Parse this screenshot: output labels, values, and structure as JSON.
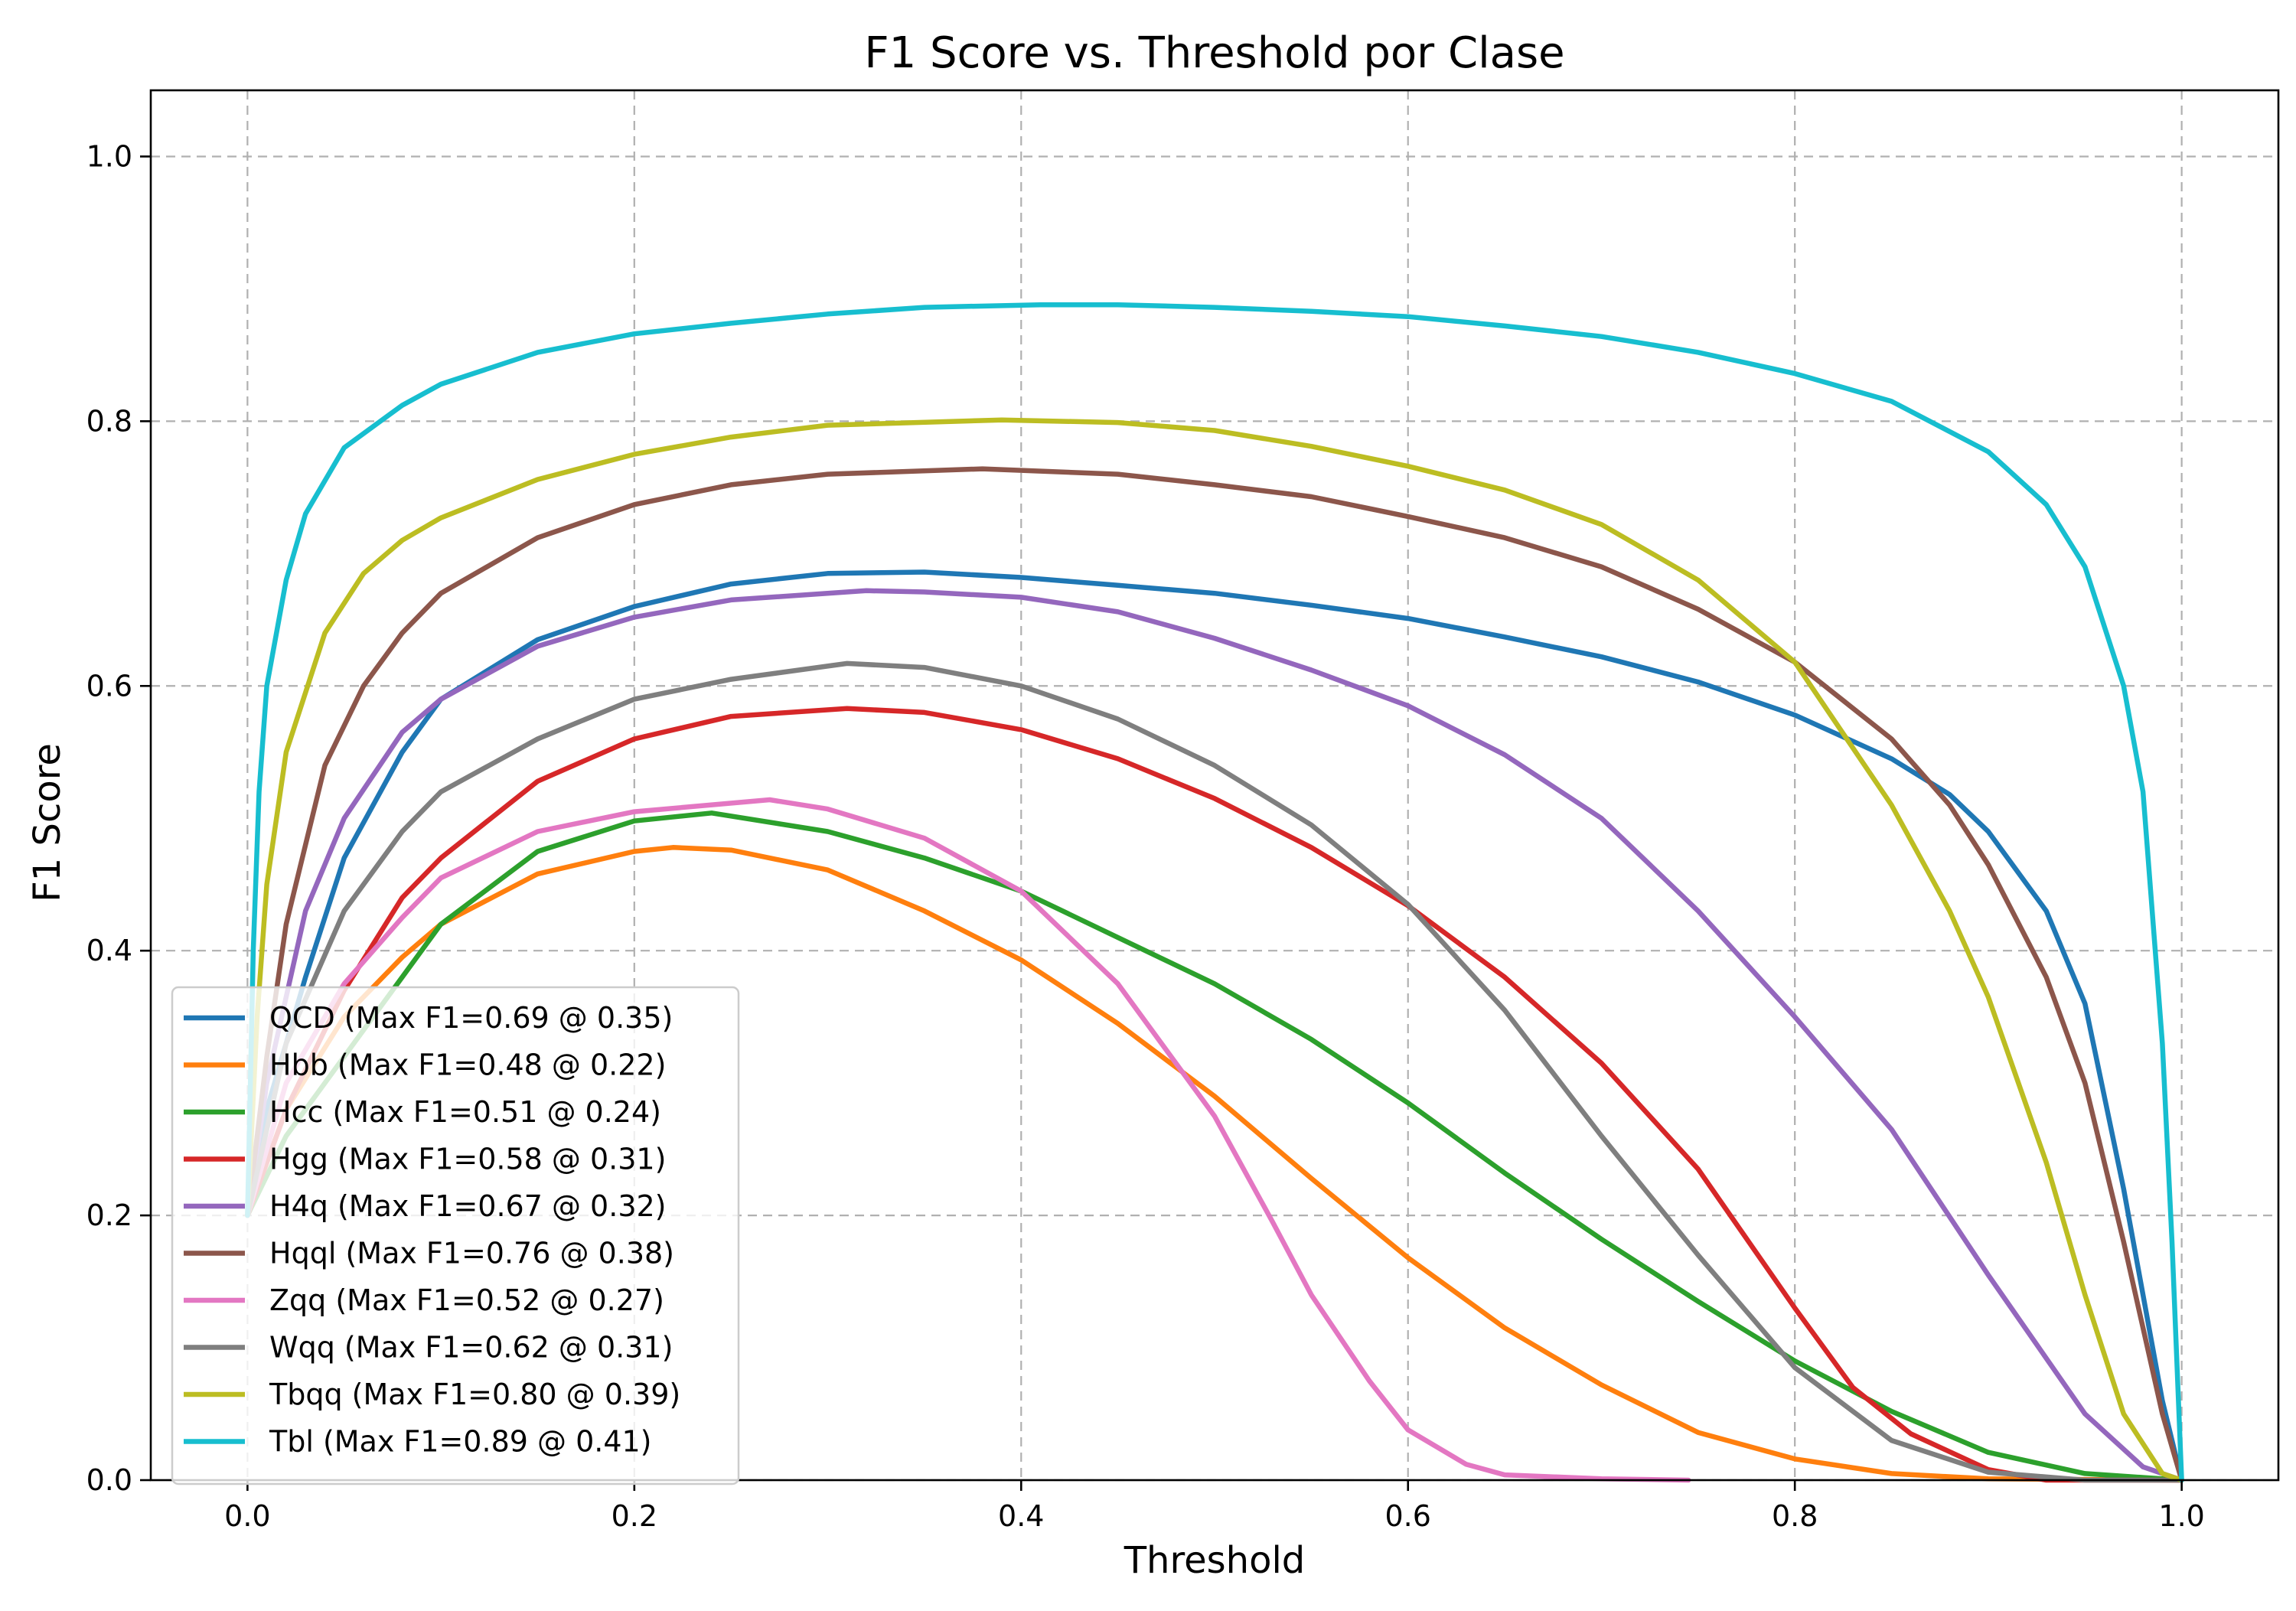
{
  "chart_data": {
    "type": "line",
    "title": "F1 Score vs. Threshold por Clase",
    "xlabel": "Threshold",
    "ylabel": "F1 Score",
    "xlim": [
      -0.05,
      1.05
    ],
    "ylim": [
      0.0,
      1.05
    ],
    "xticks": [
      0.0,
      0.2,
      0.4,
      0.6,
      0.8,
      1.0
    ],
    "xtick_labels": [
      "0.0",
      "0.2",
      "0.4",
      "0.6",
      "0.8",
      "1.0"
    ],
    "yticks": [
      0.0,
      0.2,
      0.4,
      0.6,
      0.8,
      1.0
    ],
    "ytick_labels": [
      "0.0",
      "0.2",
      "0.4",
      "0.6",
      "0.8",
      "1.0"
    ],
    "grid": true,
    "legend_position": "lower-left",
    "series": [
      {
        "name": "QCD (Max F1=0.69 @ 0.35)",
        "color": "#1f77b4",
        "points": [
          [
            0.0,
            0.2
          ],
          [
            0.01,
            0.28
          ],
          [
            0.03,
            0.38
          ],
          [
            0.05,
            0.47
          ],
          [
            0.08,
            0.55
          ],
          [
            0.1,
            0.59
          ],
          [
            0.15,
            0.635
          ],
          [
            0.2,
            0.66
          ],
          [
            0.25,
            0.677
          ],
          [
            0.3,
            0.685
          ],
          [
            0.35,
            0.686
          ],
          [
            0.4,
            0.682
          ],
          [
            0.45,
            0.676
          ],
          [
            0.5,
            0.67
          ],
          [
            0.55,
            0.661
          ],
          [
            0.6,
            0.651
          ],
          [
            0.65,
            0.637
          ],
          [
            0.7,
            0.622
          ],
          [
            0.75,
            0.603
          ],
          [
            0.8,
            0.578
          ],
          [
            0.85,
            0.545
          ],
          [
            0.88,
            0.518
          ],
          [
            0.9,
            0.49
          ],
          [
            0.93,
            0.43
          ],
          [
            0.95,
            0.36
          ],
          [
            0.97,
            0.22
          ],
          [
            0.99,
            0.06
          ],
          [
            1.0,
            0.0
          ]
        ]
      },
      {
        "name": "Hbb (Max F1=0.48 @ 0.22)",
        "color": "#ff7f0e",
        "points": [
          [
            0.0,
            0.2
          ],
          [
            0.02,
            0.28
          ],
          [
            0.05,
            0.35
          ],
          [
            0.08,
            0.395
          ],
          [
            0.1,
            0.42
          ],
          [
            0.15,
            0.458
          ],
          [
            0.2,
            0.475
          ],
          [
            0.22,
            0.478
          ],
          [
            0.25,
            0.476
          ],
          [
            0.3,
            0.461
          ],
          [
            0.35,
            0.43
          ],
          [
            0.4,
            0.393
          ],
          [
            0.45,
            0.345
          ],
          [
            0.5,
            0.29
          ],
          [
            0.55,
            0.228
          ],
          [
            0.6,
            0.168
          ],
          [
            0.65,
            0.115
          ],
          [
            0.7,
            0.072
          ],
          [
            0.75,
            0.036
          ],
          [
            0.8,
            0.016
          ],
          [
            0.85,
            0.005
          ],
          [
            0.9,
            0.001
          ],
          [
            1.0,
            0.0
          ]
        ]
      },
      {
        "name": "Hcc (Max F1=0.51 @ 0.24)",
        "color": "#2ca02c",
        "points": [
          [
            0.0,
            0.2
          ],
          [
            0.02,
            0.26
          ],
          [
            0.05,
            0.32
          ],
          [
            0.08,
            0.38
          ],
          [
            0.1,
            0.42
          ],
          [
            0.15,
            0.475
          ],
          [
            0.2,
            0.498
          ],
          [
            0.24,
            0.504
          ],
          [
            0.3,
            0.49
          ],
          [
            0.35,
            0.47
          ],
          [
            0.4,
            0.445
          ],
          [
            0.45,
            0.41
          ],
          [
            0.5,
            0.375
          ],
          [
            0.55,
            0.333
          ],
          [
            0.6,
            0.285
          ],
          [
            0.65,
            0.232
          ],
          [
            0.7,
            0.182
          ],
          [
            0.75,
            0.135
          ],
          [
            0.8,
            0.09
          ],
          [
            0.85,
            0.052
          ],
          [
            0.9,
            0.021
          ],
          [
            0.95,
            0.005
          ],
          [
            1.0,
            0.0
          ]
        ]
      },
      {
        "name": "Hgg (Max F1=0.58 @ 0.31)",
        "color": "#d62728",
        "points": [
          [
            0.0,
            0.2
          ],
          [
            0.02,
            0.28
          ],
          [
            0.05,
            0.37
          ],
          [
            0.08,
            0.44
          ],
          [
            0.1,
            0.47
          ],
          [
            0.15,
            0.528
          ],
          [
            0.2,
            0.56
          ],
          [
            0.25,
            0.577
          ],
          [
            0.31,
            0.583
          ],
          [
            0.35,
            0.58
          ],
          [
            0.4,
            0.567
          ],
          [
            0.45,
            0.545
          ],
          [
            0.5,
            0.515
          ],
          [
            0.55,
            0.478
          ],
          [
            0.6,
            0.434
          ],
          [
            0.65,
            0.38
          ],
          [
            0.7,
            0.315
          ],
          [
            0.75,
            0.235
          ],
          [
            0.8,
            0.13
          ],
          [
            0.83,
            0.07
          ],
          [
            0.86,
            0.035
          ],
          [
            0.9,
            0.008
          ],
          [
            0.93,
            0.0
          ],
          [
            1.0,
            0.0
          ]
        ]
      },
      {
        "name": "H4q (Max F1=0.67 @ 0.32)",
        "color": "#9467bd",
        "points": [
          [
            0.0,
            0.2
          ],
          [
            0.01,
            0.3
          ],
          [
            0.03,
            0.43
          ],
          [
            0.05,
            0.5
          ],
          [
            0.08,
            0.565
          ],
          [
            0.1,
            0.59
          ],
          [
            0.15,
            0.63
          ],
          [
            0.2,
            0.652
          ],
          [
            0.25,
            0.665
          ],
          [
            0.32,
            0.672
          ],
          [
            0.35,
            0.671
          ],
          [
            0.4,
            0.667
          ],
          [
            0.45,
            0.656
          ],
          [
            0.5,
            0.636
          ],
          [
            0.55,
            0.612
          ],
          [
            0.6,
            0.585
          ],
          [
            0.65,
            0.548
          ],
          [
            0.7,
            0.5
          ],
          [
            0.75,
            0.43
          ],
          [
            0.8,
            0.35
          ],
          [
            0.85,
            0.265
          ],
          [
            0.9,
            0.155
          ],
          [
            0.95,
            0.05
          ],
          [
            0.98,
            0.01
          ],
          [
            1.0,
            0.0
          ]
        ]
      },
      {
        "name": "Hqql (Max F1=0.76 @ 0.38)",
        "color": "#8c564b",
        "points": [
          [
            0.0,
            0.2
          ],
          [
            0.01,
            0.32
          ],
          [
            0.02,
            0.42
          ],
          [
            0.04,
            0.54
          ],
          [
            0.06,
            0.6
          ],
          [
            0.08,
            0.64
          ],
          [
            0.1,
            0.67
          ],
          [
            0.15,
            0.712
          ],
          [
            0.2,
            0.737
          ],
          [
            0.25,
            0.752
          ],
          [
            0.3,
            0.76
          ],
          [
            0.38,
            0.764
          ],
          [
            0.45,
            0.76
          ],
          [
            0.5,
            0.752
          ],
          [
            0.55,
            0.743
          ],
          [
            0.6,
            0.728
          ],
          [
            0.65,
            0.712
          ],
          [
            0.7,
            0.69
          ],
          [
            0.75,
            0.658
          ],
          [
            0.8,
            0.618
          ],
          [
            0.85,
            0.56
          ],
          [
            0.88,
            0.51
          ],
          [
            0.9,
            0.465
          ],
          [
            0.93,
            0.38
          ],
          [
            0.95,
            0.3
          ],
          [
            0.97,
            0.18
          ],
          [
            0.99,
            0.05
          ],
          [
            1.0,
            0.0
          ]
        ]
      },
      {
        "name": "Zqq (Max F1=0.52 @ 0.27)",
        "color": "#e377c2",
        "points": [
          [
            0.0,
            0.2
          ],
          [
            0.02,
            0.3
          ],
          [
            0.05,
            0.375
          ],
          [
            0.08,
            0.425
          ],
          [
            0.1,
            0.455
          ],
          [
            0.15,
            0.49
          ],
          [
            0.2,
            0.505
          ],
          [
            0.27,
            0.514
          ],
          [
            0.3,
            0.507
          ],
          [
            0.35,
            0.485
          ],
          [
            0.4,
            0.445
          ],
          [
            0.45,
            0.375
          ],
          [
            0.5,
            0.275
          ],
          [
            0.53,
            0.195
          ],
          [
            0.55,
            0.14
          ],
          [
            0.58,
            0.075
          ],
          [
            0.6,
            0.038
          ],
          [
            0.63,
            0.012
          ],
          [
            0.65,
            0.004
          ],
          [
            0.7,
            0.001
          ],
          [
            0.745,
            0.0
          ]
        ]
      },
      {
        "name": "Wqq (Max F1=0.62 @ 0.31)",
        "color": "#7f7f7f",
        "points": [
          [
            0.0,
            0.2
          ],
          [
            0.02,
            0.33
          ],
          [
            0.05,
            0.43
          ],
          [
            0.08,
            0.49
          ],
          [
            0.1,
            0.52
          ],
          [
            0.15,
            0.56
          ],
          [
            0.2,
            0.59
          ],
          [
            0.25,
            0.605
          ],
          [
            0.31,
            0.617
          ],
          [
            0.35,
            0.614
          ],
          [
            0.4,
            0.6
          ],
          [
            0.45,
            0.575
          ],
          [
            0.5,
            0.54
          ],
          [
            0.55,
            0.495
          ],
          [
            0.6,
            0.435
          ],
          [
            0.65,
            0.355
          ],
          [
            0.7,
            0.26
          ],
          [
            0.75,
            0.17
          ],
          [
            0.8,
            0.085
          ],
          [
            0.85,
            0.03
          ],
          [
            0.9,
            0.006
          ],
          [
            0.95,
            0.0
          ],
          [
            1.0,
            0.0
          ]
        ]
      },
      {
        "name": "Tbqq (Max F1=0.80 @ 0.39)",
        "color": "#bcbd22",
        "points": [
          [
            0.0,
            0.2
          ],
          [
            0.005,
            0.35
          ],
          [
            0.01,
            0.45
          ],
          [
            0.02,
            0.55
          ],
          [
            0.04,
            0.64
          ],
          [
            0.06,
            0.685
          ],
          [
            0.08,
            0.71
          ],
          [
            0.1,
            0.727
          ],
          [
            0.15,
            0.756
          ],
          [
            0.2,
            0.775
          ],
          [
            0.25,
            0.788
          ],
          [
            0.3,
            0.797
          ],
          [
            0.39,
            0.801
          ],
          [
            0.45,
            0.799
          ],
          [
            0.5,
            0.793
          ],
          [
            0.55,
            0.781
          ],
          [
            0.6,
            0.766
          ],
          [
            0.65,
            0.748
          ],
          [
            0.7,
            0.722
          ],
          [
            0.75,
            0.68
          ],
          [
            0.8,
            0.618
          ],
          [
            0.85,
            0.51
          ],
          [
            0.88,
            0.43
          ],
          [
            0.9,
            0.365
          ],
          [
            0.93,
            0.24
          ],
          [
            0.95,
            0.14
          ],
          [
            0.97,
            0.05
          ],
          [
            0.99,
            0.005
          ],
          [
            1.0,
            0.0
          ]
        ]
      },
      {
        "name": "Tbl (Max F1=0.89 @ 0.41)",
        "color": "#17becf",
        "points": [
          [
            0.0,
            0.2
          ],
          [
            0.003,
            0.4
          ],
          [
            0.006,
            0.52
          ],
          [
            0.01,
            0.6
          ],
          [
            0.02,
            0.68
          ],
          [
            0.03,
            0.73
          ],
          [
            0.05,
            0.78
          ],
          [
            0.08,
            0.812
          ],
          [
            0.1,
            0.828
          ],
          [
            0.15,
            0.852
          ],
          [
            0.2,
            0.866
          ],
          [
            0.25,
            0.874
          ],
          [
            0.3,
            0.881
          ],
          [
            0.35,
            0.886
          ],
          [
            0.41,
            0.888
          ],
          [
            0.45,
            0.888
          ],
          [
            0.5,
            0.886
          ],
          [
            0.55,
            0.883
          ],
          [
            0.6,
            0.879
          ],
          [
            0.65,
            0.872
          ],
          [
            0.7,
            0.864
          ],
          [
            0.75,
            0.852
          ],
          [
            0.8,
            0.836
          ],
          [
            0.85,
            0.815
          ],
          [
            0.9,
            0.777
          ],
          [
            0.93,
            0.737
          ],
          [
            0.95,
            0.69
          ],
          [
            0.97,
            0.6
          ],
          [
            0.98,
            0.52
          ],
          [
            0.99,
            0.33
          ],
          [
            0.995,
            0.18
          ],
          [
            1.0,
            0.0
          ]
        ]
      }
    ]
  }
}
